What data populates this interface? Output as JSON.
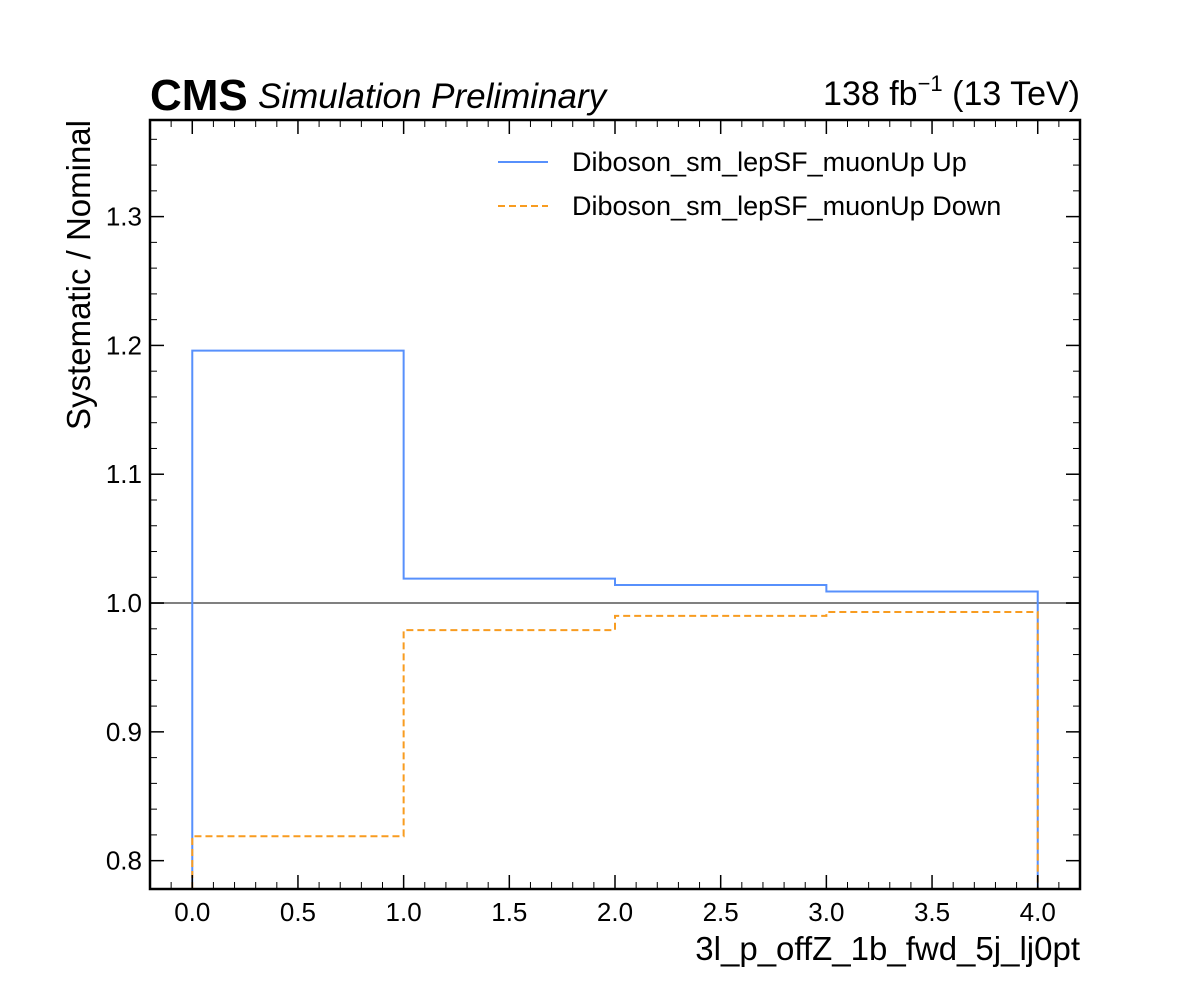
{
  "header": {
    "experiment": "CMS",
    "status": "Simulation Preliminary",
    "lumi_value": "138 fb",
    "lumi_exponent": "−1",
    "lumi_energy": " (13 TeV)"
  },
  "chart_data": {
    "type": "line",
    "drawstyle": "steps",
    "xlabel": "3l_p_offZ_1b_fwd_5j_lj0pt",
    "ylabel": "Systematic / Nominal",
    "xlim": [
      -0.2,
      4.2
    ],
    "ylim": [
      0.778,
      1.375
    ],
    "xticks": [
      "0.0",
      "0.5",
      "1.0",
      "1.5",
      "2.0",
      "2.5",
      "3.0",
      "3.5",
      "4.0"
    ],
    "xtick_values": [
      0.0,
      0.5,
      1.0,
      1.5,
      2.0,
      2.5,
      3.0,
      3.5,
      4.0
    ],
    "yticks": [
      "0.8",
      "0.9",
      "1.0",
      "1.1",
      "1.2",
      "1.3"
    ],
    "ytick_values": [
      0.8,
      0.9,
      1.0,
      1.1,
      1.2,
      1.3
    ],
    "bin_edges": [
      0,
      1,
      2,
      3,
      4
    ],
    "reference_line": 1.0,
    "legend_position": "top-right",
    "grid": false,
    "series": [
      {
        "name": "Diboson_sm_lepSF_muonUp Up",
        "values": [
          1.196,
          1.019,
          1.014,
          1.009
        ],
        "color": "#5790fc",
        "dash": "solid"
      },
      {
        "name": "Diboson_sm_lepSF_muonUp Down",
        "values": [
          0.819,
          0.979,
          0.99,
          0.993
        ],
        "color": "#f89c20",
        "dash": "dashed"
      }
    ],
    "reference_color": "#808080"
  }
}
